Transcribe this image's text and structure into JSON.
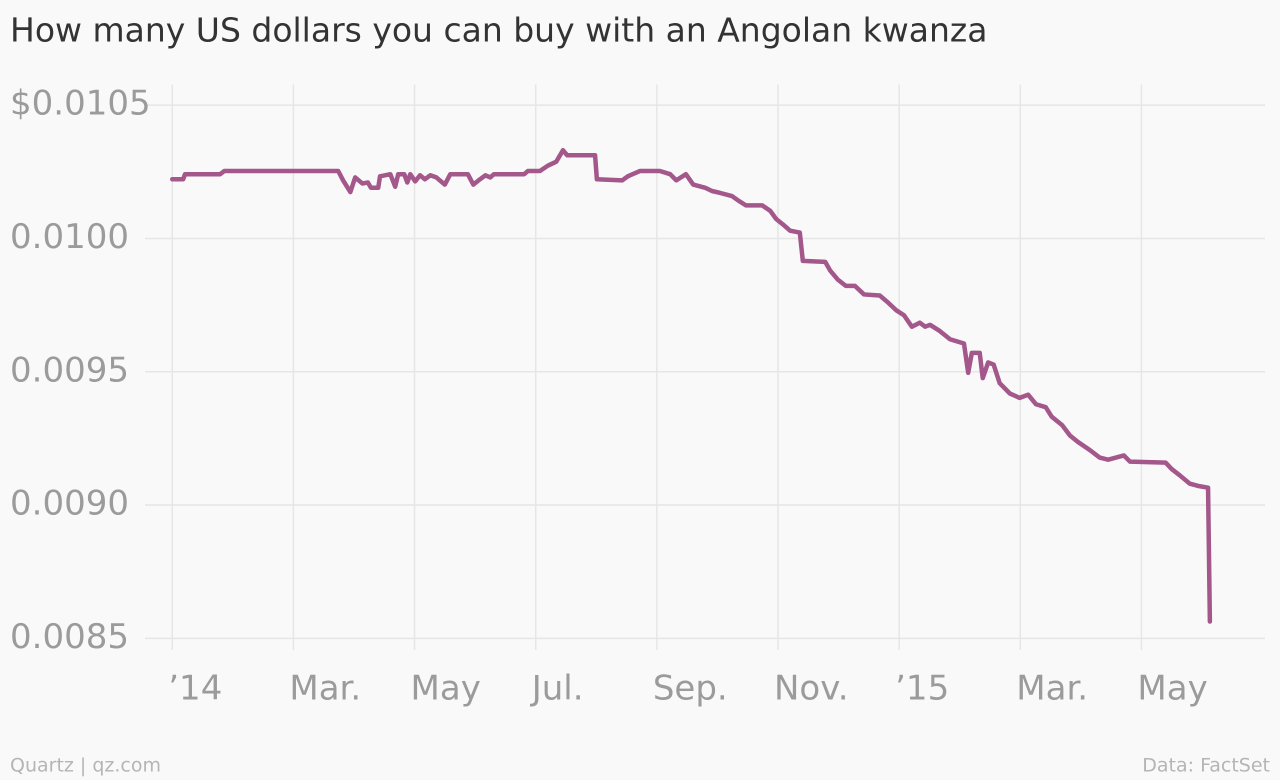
{
  "chart_data": {
    "type": "line",
    "title": "How many US dollars you can buy with an Angolan kwanza",
    "credit": "Quartz | qz.com",
    "source": "Data: FactSet",
    "color": "#a3578a",
    "grid": true,
    "xlim": [
      -0.45,
      18.04
    ],
    "xticks": [
      {
        "value": 0,
        "label": "’14"
      },
      {
        "value": 2,
        "label": "Mar."
      },
      {
        "value": 4,
        "label": "May"
      },
      {
        "value": 6,
        "label": "Jul."
      },
      {
        "value": 8,
        "label": "Sep."
      },
      {
        "value": 10,
        "label": "Nov."
      },
      {
        "value": 12,
        "label": "’15"
      },
      {
        "value": 14,
        "label": "Mar."
      },
      {
        "value": 16,
        "label": "May"
      }
    ],
    "ylim": [
      0.0084,
      0.0106
    ],
    "yticks": [
      {
        "value": 0.0085,
        "label": "0.0085"
      },
      {
        "value": 0.009,
        "label": "0.0090"
      },
      {
        "value": 0.0095,
        "label": "0.0095"
      },
      {
        "value": 0.01,
        "label": "0.0100"
      },
      {
        "value": 0.0105,
        "label": "$0.0105"
      }
    ],
    "x": [
      0,
      0.18,
      0.21,
      0.79,
      0.86,
      2.74,
      2.82,
      2.94,
      3.02,
      3.14,
      3.23,
      3.28,
      3.4,
      3.43,
      3.6,
      3.68,
      3.73,
      3.83,
      3.88,
      3.93,
      4.01,
      4.09,
      4.17,
      4.26,
      4.36,
      4.5,
      4.59,
      4.88,
      4.97,
      5.08,
      5.17,
      5.25,
      5.31,
      5.81,
      5.87,
      6.07,
      6.2,
      6.34,
      6.45,
      6.52,
      6.98,
      7.01,
      7.43,
      7.52,
      7.72,
      8.05,
      8.22,
      8.32,
      8.48,
      8.6,
      8.8,
      8.91,
      9.04,
      9.24,
      9.34,
      9.47,
      9.74,
      9.87,
      9.97,
      10.08,
      10.2,
      10.36,
      10.41,
      10.78,
      10.86,
      10.99,
      11.12,
      11.27,
      11.42,
      11.68,
      11.82,
      11.95,
      12.08,
      12.21,
      12.34,
      12.43,
      12.51,
      12.67,
      12.84,
      13.07,
      13.14,
      13.2,
      13.33,
      13.38,
      13.47,
      13.56,
      13.66,
      13.83,
      13.99,
      14.13,
      14.26,
      14.42,
      14.52,
      14.69,
      14.82,
      14.95,
      15.15,
      15.31,
      15.45,
      15.58,
      15.71,
      15.81,
      16.4,
      16.5,
      16.63,
      16.8,
      16.93,
      17.1,
      17.13
    ],
    "values": [
      0.010222,
      0.010222,
      0.010241,
      0.010241,
      0.010253,
      0.010253,
      0.010218,
      0.010174,
      0.010229,
      0.010206,
      0.01021,
      0.01019,
      0.01019,
      0.010233,
      0.010241,
      0.010194,
      0.010241,
      0.010241,
      0.01021,
      0.010241,
      0.010214,
      0.010237,
      0.010222,
      0.010237,
      0.010229,
      0.010202,
      0.010241,
      0.010241,
      0.010202,
      0.010222,
      0.010237,
      0.010229,
      0.010241,
      0.010241,
      0.010253,
      0.010253,
      0.010273,
      0.010288,
      0.010331,
      0.010312,
      0.010312,
      0.010222,
      0.010218,
      0.010233,
      0.010253,
      0.010253,
      0.010241,
      0.010218,
      0.010241,
      0.010202,
      0.01019,
      0.010178,
      0.010171,
      0.010159,
      0.010143,
      0.010124,
      0.010124,
      0.010104,
      0.010073,
      0.010053,
      0.010029,
      0.010022,
      0.009916,
      0.009912,
      0.00988,
      0.009845,
      0.009822,
      0.009822,
      0.00979,
      0.009786,
      0.009759,
      0.009731,
      0.009712,
      0.009669,
      0.009684,
      0.009669,
      0.009676,
      0.009653,
      0.009622,
      0.009606,
      0.009496,
      0.009571,
      0.009571,
      0.009476,
      0.009535,
      0.009527,
      0.009457,
      0.009418,
      0.009402,
      0.009414,
      0.009378,
      0.009367,
      0.009331,
      0.0093,
      0.009261,
      0.009237,
      0.009206,
      0.009178,
      0.00917,
      0.009178,
      0.009186,
      0.009163,
      0.009159,
      0.009135,
      0.009112,
      0.00908,
      0.009072,
      0.009065,
      0.008563
    ]
  }
}
